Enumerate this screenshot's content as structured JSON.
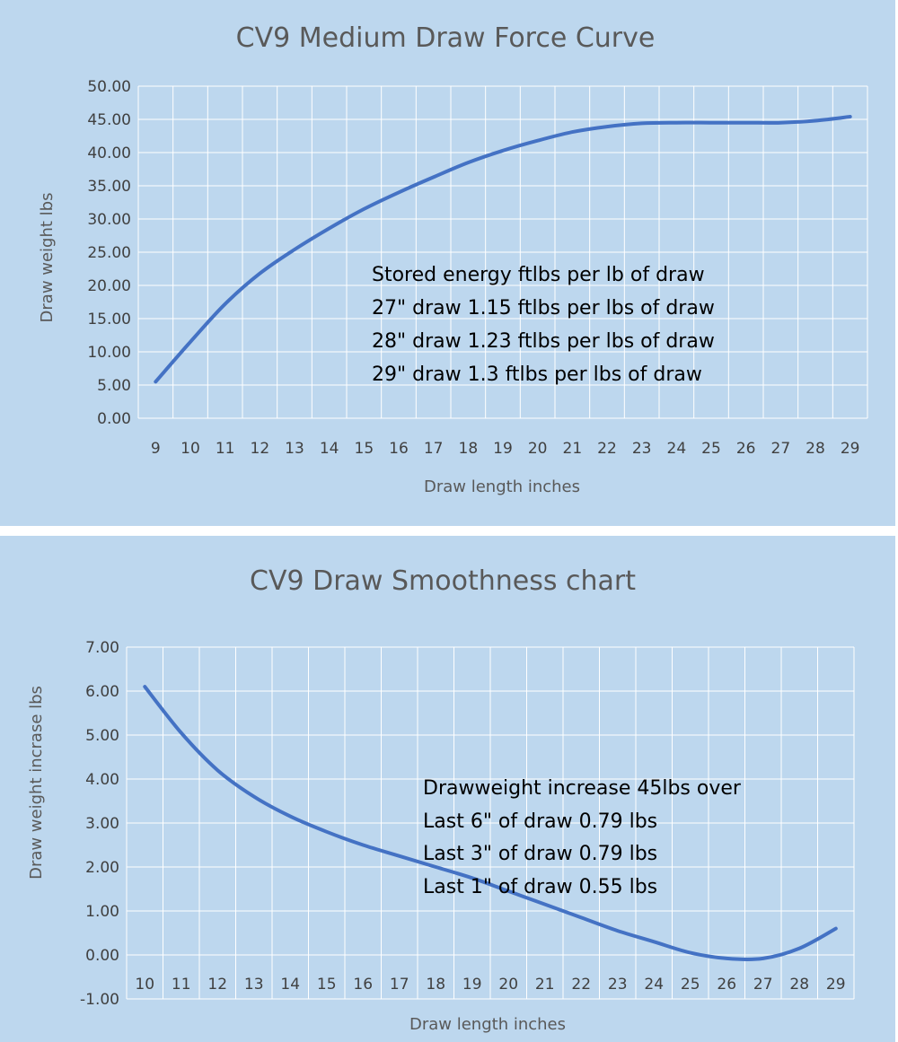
{
  "colors": {
    "background": "#bdd7ee",
    "grid": "#ffffff",
    "line": "#4472c4"
  },
  "chart_data": [
    {
      "type": "line",
      "title": "CV9 Medium Draw Force Curve",
      "xlabel": "Draw length inches",
      "ylabel": "Draw weight lbs",
      "x": [
        9,
        10,
        11,
        12,
        13,
        14,
        15,
        16,
        17,
        18,
        19,
        20,
        21,
        22,
        23,
        24,
        25,
        26,
        27,
        28,
        29
      ],
      "series": [
        {
          "values": [
            5.5,
            11.5,
            17.2,
            21.8,
            25.4,
            28.6,
            31.5,
            34.0,
            36.3,
            38.5,
            40.3,
            41.8,
            43.1,
            43.9,
            44.4,
            44.5,
            44.5,
            44.5,
            44.5,
            44.8,
            45.4
          ]
        }
      ],
      "ylim": [
        0,
        50
      ],
      "ytick_labels": [
        "0.00",
        "5.00",
        "10.00",
        "15.00",
        "20.00",
        "25.00",
        "30.00",
        "35.00",
        "40.00",
        "45.00",
        "50.00"
      ],
      "grid": true,
      "legend": "none",
      "annotations": [
        "Stored energy ftlbs per lb of draw",
        "27\" draw 1.15 ftlbs per lbs of draw",
        "28\" draw 1.23 ftlbs per lbs of draw",
        "29\" draw 1.3 ftlbs per lbs of draw"
      ]
    },
    {
      "type": "line",
      "title": "CV9 Draw Smoothness chart",
      "xlabel": "Draw length inches",
      "ylabel": "Draw weight incrase lbs",
      "x": [
        10,
        11,
        12,
        13,
        14,
        15,
        16,
        17,
        18,
        19,
        20,
        21,
        22,
        23,
        24,
        25,
        26,
        27,
        28,
        29
      ],
      "series": [
        {
          "values": [
            6.1,
            5.05,
            4.2,
            3.6,
            3.15,
            2.8,
            2.5,
            2.25,
            2.0,
            1.75,
            1.45,
            1.15,
            0.85,
            0.55,
            0.3,
            0.05,
            -0.08,
            -0.08,
            0.15,
            0.6
          ]
        }
      ],
      "ylim": [
        -1,
        7
      ],
      "ytick_labels": [
        "-1.00",
        "0.00",
        "1.00",
        "2.00",
        "3.00",
        "4.00",
        "5.00",
        "6.00",
        "7.00"
      ],
      "grid": true,
      "legend": "none",
      "annotations": [
        "Drawweight increase 45lbs over",
        "Last 6\" of draw 0.79 lbs",
        "Last 3\" of draw 0.79 lbs",
        "Last 1\" of draw 0.55 lbs"
      ]
    }
  ]
}
